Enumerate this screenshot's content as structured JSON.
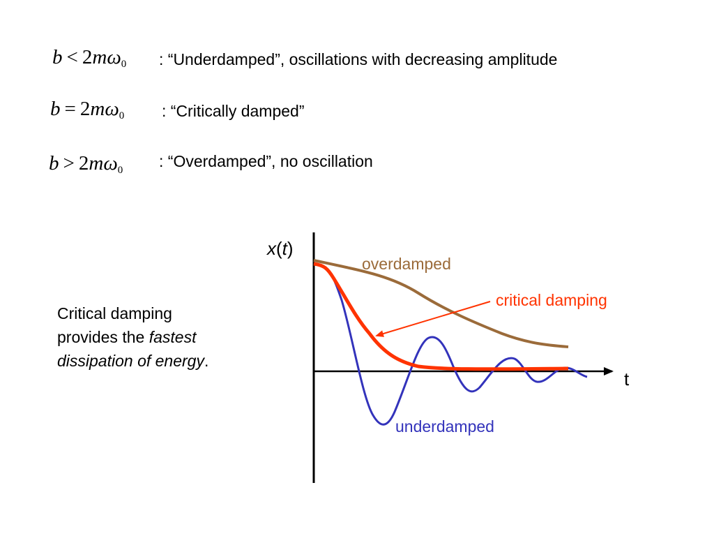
{
  "conditions": [
    {
      "lhs": "b",
      "op": "<",
      "coef": "2",
      "m": "m",
      "omega": "ω",
      "sub": "0",
      "description": ": “Underdamped”,  oscillations with decreasing amplitude"
    },
    {
      "lhs": "b",
      "op": "=",
      "coef": "2",
      "m": "m",
      "omega": "ω",
      "sub": "0",
      "description": ": “Critically damped”"
    },
    {
      "lhs": "b",
      "op": ">",
      "coef": "2",
      "m": "m",
      "omega": "ω",
      "sub": "0",
      "description": ": “Overdamped”, no oscillation"
    }
  ],
  "note": {
    "line1": "Critical damping",
    "line2_plain": "provides the ",
    "line2_italic": "fastest",
    "line3_italic": "dissipation of energy",
    "line3_tail": "."
  },
  "graph": {
    "y_label_var": "x",
    "y_label_open": "(",
    "y_label_arg": "t",
    "y_label_close": ")",
    "x_label": "t",
    "curves": [
      {
        "name": "overdamped",
        "label": "overdamped",
        "color": "#9b6b3a"
      },
      {
        "name": "critical",
        "label": "critical damping",
        "color": "#ff3300"
      },
      {
        "name": "underdamped",
        "label": "underdamped",
        "color": "#3333bb"
      }
    ],
    "axis_color": "#000000"
  }
}
